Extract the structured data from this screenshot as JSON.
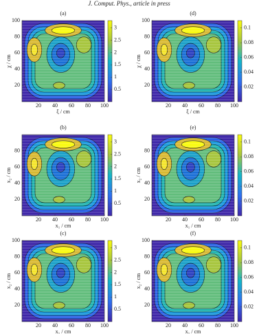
{
  "header": "J. Comput. Phys., article in press",
  "chart_data": [
    {
      "type": "contour",
      "label": "(a)",
      "xlabel": "ξ / cm",
      "ylabel": "χ / cm",
      "xlim": [
        0,
        100
      ],
      "ylim": [
        0,
        100
      ],
      "xticks": [
        20,
        40,
        60,
        80,
        100
      ],
      "yticks": [
        20,
        40,
        60,
        80,
        100
      ],
      "clim": [
        0,
        3.3
      ],
      "cticks": [
        0.5,
        1,
        1.5,
        2,
        2.5,
        3
      ]
    },
    {
      "type": "contour",
      "label": "(d)",
      "xlabel": "ξ / cm",
      "ylabel": "χ / cm",
      "xlim": [
        0,
        100
      ],
      "ylim": [
        0,
        100
      ],
      "xticks": [
        20,
        40,
        60,
        80,
        100
      ],
      "yticks": [
        20,
        40,
        60,
        80,
        100
      ],
      "clim": [
        0,
        0.11
      ],
      "cticks": [
        0.02,
        0.04,
        0.06,
        0.08,
        0.1
      ]
    },
    {
      "type": "contour",
      "label": "(b)",
      "xlabel": "x₁ / cm",
      "ylabel": "x₂ / cm",
      "xlim": [
        0,
        100
      ],
      "ylim": [
        0,
        100
      ],
      "xticks": [
        20,
        40,
        60,
        80,
        100
      ],
      "yticks": [
        20,
        40,
        60,
        80
      ],
      "clim": [
        0,
        3.3
      ],
      "cticks": [
        0.5,
        1,
        1.5,
        2,
        2.5,
        3
      ]
    },
    {
      "type": "contour",
      "label": "(e)",
      "xlabel": "x₁ / cm",
      "ylabel": "x₂ / cm",
      "xlim": [
        0,
        100
      ],
      "ylim": [
        0,
        100
      ],
      "xticks": [
        20,
        40,
        60,
        80,
        100
      ],
      "yticks": [
        20,
        40,
        60,
        80
      ],
      "clim": [
        0,
        0.11
      ],
      "cticks": [
        0.02,
        0.04,
        0.06,
        0.08,
        0.1
      ]
    },
    {
      "type": "contour",
      "label": "(c)",
      "xlabel": "x₁ / cm",
      "ylabel": "x₂ / cm",
      "xlim": [
        0,
        100
      ],
      "ylim": [
        0,
        100
      ],
      "xticks": [
        20,
        40,
        60,
        80,
        100
      ],
      "yticks": [
        20,
        40,
        60,
        80,
        100
      ],
      "clim": [
        0,
        3.3
      ],
      "cticks": [
        0.5,
        1,
        1.5,
        2,
        2.5,
        3
      ]
    },
    {
      "type": "contour",
      "label": "(f)",
      "xlabel": "x₁ / cm",
      "ylabel": "x₂ / cm",
      "xlim": [
        0,
        100
      ],
      "ylim": [
        0,
        100
      ],
      "xticks": [
        20,
        40,
        60,
        80,
        100
      ],
      "yticks": [
        20,
        40,
        60,
        80,
        100
      ],
      "clim": [
        0,
        0.11
      ],
      "cticks": [
        0.02,
        0.04,
        0.06,
        0.08,
        0.1
      ]
    }
  ]
}
